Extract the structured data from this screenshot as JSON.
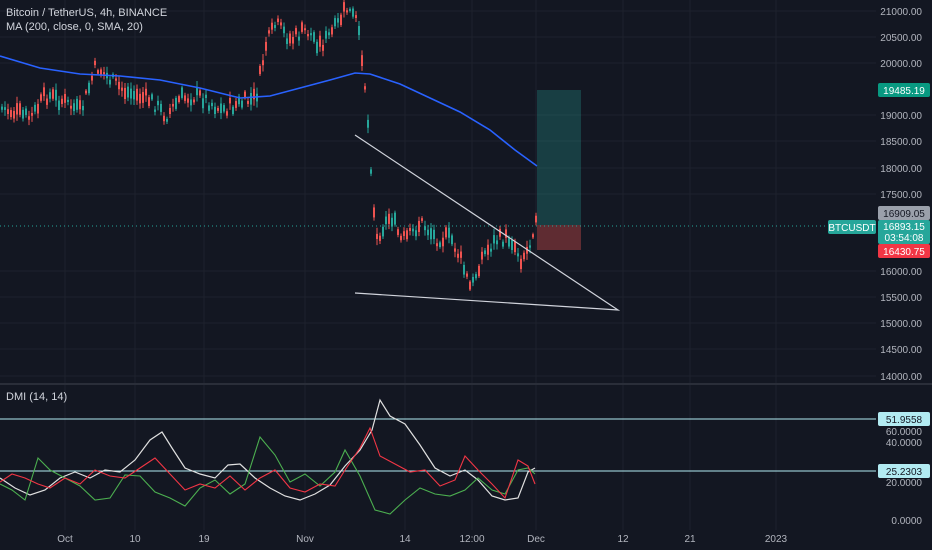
{
  "legend": {
    "symbol": "Bitcoin / TetherUS, 4h, BINANCE",
    "ma": "MA (200, close, 0, SMA, 20)",
    "dmi": "DMI (14, 14)"
  },
  "price_axis": [
    "21000.00",
    "20500.00",
    "20000.00",
    "19000.00",
    "18500.00",
    "18000.00",
    "17500.00",
    "16000.00",
    "15500.00",
    "15000.00",
    "14500.00",
    "14000.00"
  ],
  "dmi_axis": [
    "60.0000",
    "40.0000",
    "20.0000",
    "0.0000"
  ],
  "time_axis": [
    "Oct",
    "10",
    "19",
    "Nov",
    "14",
    "12:00",
    "Dec",
    "12",
    "21",
    "2023"
  ],
  "tags": {
    "target": "19485.19",
    "entry": "16909.05",
    "current": "16893.15",
    "countdown": "03:54:08",
    "stop": "16430.75",
    "ticker": "BTCUSDT",
    "dmi_level_high": "51.9558",
    "dmi_level_low": "25.2303"
  },
  "colors": {
    "background": "#131722",
    "up": "#26a69a",
    "down": "#ef5350",
    "ma": "#2962ff",
    "level_line": "#b2ebf2",
    "target_bg": "#089981",
    "stop_bg": "#f23645"
  }
}
